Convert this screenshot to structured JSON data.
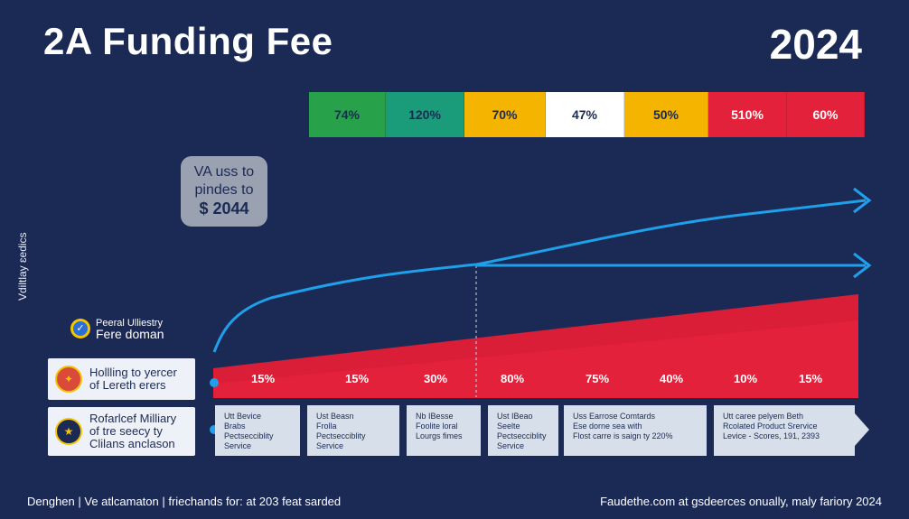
{
  "header": {
    "title": "2A Funding Fee",
    "year": "2024"
  },
  "rate_bars": [
    {
      "label": "74%",
      "color": "#27a24a"
    },
    {
      "label": "120%",
      "color": "#1a9b7a"
    },
    {
      "label": "70%",
      "color": "#f4b400"
    },
    {
      "label": "47%",
      "color": "#ffffff"
    },
    {
      "label": "50%",
      "color": "#f4b400"
    },
    {
      "label": "510%",
      "color": "#e3213a"
    },
    {
      "label": "60%",
      "color": "#e3213a"
    }
  ],
  "callout": {
    "line1": "VA uss to",
    "line2": "pindes to",
    "line3": "$ 2044"
  },
  "vertical_label": "Vdiltlay ɛedics",
  "legend": {
    "line1": "Peeral Ulliestry",
    "line2": "Fere doman"
  },
  "row1": {
    "line1": "Hollling to yercer",
    "line2": "of Lereth erers"
  },
  "row2": {
    "line1": "Rofarlcef Milliary",
    "line2": "of tre seecy ty",
    "line3": "Clilans anclason"
  },
  "percentages": [
    "15%",
    "15%",
    "30%",
    "80%",
    "75%",
    "40%",
    "10%",
    "15%"
  ],
  "service_boxes": [
    {
      "lines": [
        "Utt Bevice",
        "Brabs",
        "Pectsecciblity",
        "Service"
      ]
    },
    {
      "lines": [
        "Ust Beasn",
        "Frolla",
        "Pectsecciblity",
        "Service"
      ]
    },
    {
      "lines": [
        "Nb IBesse",
        "Foolite loral",
        "Lourgs fimes"
      ]
    },
    {
      "lines": [
        "Ust IBeao",
        "Seelte",
        "Pectsecciblity",
        "Service"
      ]
    },
    {
      "lines": [
        "Uss Earrose Comtards",
        "Ese dorne sea with",
        "Flost carre is saign ty 220%"
      ]
    },
    {
      "lines": [
        "Utt caree pelyem Beth",
        "Rcolated Product Srervice",
        "Levice - Scores, 191, 2393"
      ]
    }
  ],
  "footer": {
    "left": "Denghen | Ve atlcamaton | friechands for: at 203 feat sarded",
    "right": "Faudethe.com at gsdeerces onually, maly fariory 2024"
  },
  "colors": {
    "background": "#1b2a55",
    "curve": "#1ea0ea",
    "wedge": "#e3213a"
  }
}
